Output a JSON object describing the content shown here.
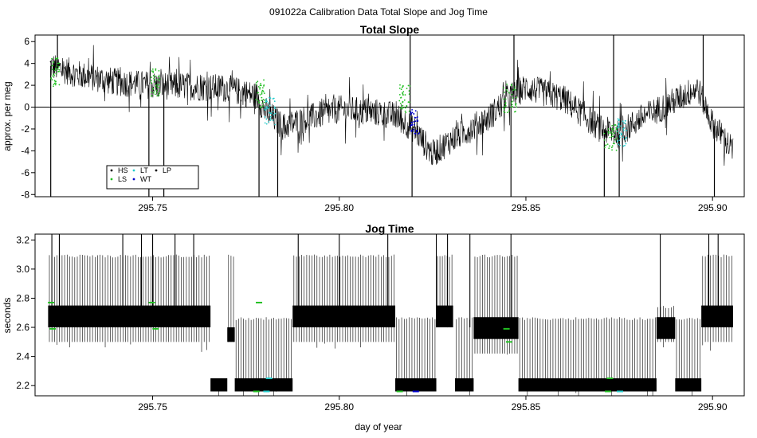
{
  "page_title": "091022a   Calibration Data Total Slope and Jog Time",
  "colors": {
    "trace": "#000000",
    "HS": "#000000",
    "LS": "#22c022",
    "LT": "#22cccc",
    "WT": "#0000cc",
    "LP": "#000000",
    "zero_line": "#000000"
  },
  "chart_data": [
    {
      "type": "line",
      "title": "Total Slope",
      "xlabel": "",
      "ylabel": "approx. per meg",
      "xlim": [
        295.7185,
        295.9085
      ],
      "ylim": [
        -8.2,
        6.6
      ],
      "x_ticks": [
        "295.75",
        "295.80",
        "295.85",
        "295.90"
      ],
      "x_tick_values": [
        295.75,
        295.8,
        295.85,
        295.9
      ],
      "y_ticks": [
        "6",
        "4",
        "2",
        "0",
        "-2",
        "-4",
        "-6",
        "-8"
      ],
      "y_tick_values": [
        6,
        4,
        2,
        0,
        -2,
        -4,
        -6,
        -8
      ],
      "reference_line_y": 0,
      "x_range": [
        295.7225,
        295.9055
      ],
      "trend": [
        {
          "x": 295.7225,
          "y": 3.8
        },
        {
          "x": 295.73,
          "y": 3.0
        },
        {
          "x": 295.74,
          "y": 2.3
        },
        {
          "x": 295.75,
          "y": 2.0
        },
        {
          "x": 295.76,
          "y": 1.9
        },
        {
          "x": 295.77,
          "y": 1.7
        },
        {
          "x": 295.778,
          "y": 1.0
        },
        {
          "x": 295.78,
          "y": -0.3
        },
        {
          "x": 295.785,
          "y": -1.8
        },
        {
          "x": 295.79,
          "y": -1.2
        },
        {
          "x": 295.8,
          "y": -0.2
        },
        {
          "x": 295.81,
          "y": -0.5
        },
        {
          "x": 295.815,
          "y": -0.8
        },
        {
          "x": 295.82,
          "y": -2.0
        },
        {
          "x": 295.825,
          "y": -4.3
        },
        {
          "x": 295.83,
          "y": -3.0
        },
        {
          "x": 295.84,
          "y": -1.0
        },
        {
          "x": 295.845,
          "y": 0.8
        },
        {
          "x": 295.85,
          "y": 1.8
        },
        {
          "x": 295.86,
          "y": 0.8
        },
        {
          "x": 295.87,
          "y": -2.0
        },
        {
          "x": 295.875,
          "y": -2.5
        },
        {
          "x": 295.88,
          "y": -1.2
        },
        {
          "x": 295.89,
          "y": 0.6
        },
        {
          "x": 295.896,
          "y": 1.8
        },
        {
          "x": 295.9,
          "y": -1.5
        },
        {
          "x": 295.9055,
          "y": -4.0
        }
      ],
      "noise_amplitude": 1.3,
      "spikes": [
        {
          "x": 295.7227,
          "y": -8.2
        },
        {
          "x": 295.7245,
          "y": 6.6
        },
        {
          "x": 295.749,
          "y": -8.2
        },
        {
          "x": 295.753,
          "y": -8.2
        },
        {
          "x": 295.7785,
          "y": -8.2
        },
        {
          "x": 295.7835,
          "y": -8.2
        },
        {
          "x": 295.819,
          "y": 6.6
        },
        {
          "x": 295.8195,
          "y": -8.2
        },
        {
          "x": 295.846,
          "y": -8.2
        },
        {
          "x": 295.8468,
          "y": 6.6
        },
        {
          "x": 295.871,
          "y": -8.2
        },
        {
          "x": 295.8735,
          "y": 6.6
        },
        {
          "x": 295.875,
          "y": -8.2
        },
        {
          "x": 295.8975,
          "y": 6.6
        },
        {
          "x": 295.9005,
          "y": -8.2
        }
      ],
      "calibration_segments": [
        {
          "series": "LS",
          "x_start": 295.7228,
          "x_end": 295.725,
          "y_center": 3.2
        },
        {
          "series": "LS",
          "x_start": 295.7495,
          "x_end": 295.752,
          "y_center": 2.2
        },
        {
          "series": "LS",
          "x_start": 295.7775,
          "x_end": 295.78,
          "y_center": 1.2
        },
        {
          "series": "LT",
          "x_start": 295.78,
          "x_end": 295.783,
          "y_center": -0.4
        },
        {
          "series": "LS",
          "x_start": 295.816,
          "x_end": 295.819,
          "y_center": 0.8
        },
        {
          "series": "WT",
          "x_start": 295.819,
          "x_end": 295.8215,
          "y_center": -1.4
        },
        {
          "series": "LS",
          "x_start": 295.844,
          "x_end": 295.8475,
          "y_center": 0.8
        },
        {
          "series": "LS",
          "x_start": 295.871,
          "x_end": 295.8745,
          "y_center": -2.8
        },
        {
          "series": "LT",
          "x_start": 295.8745,
          "x_end": 295.877,
          "y_center": -2.3
        }
      ],
      "legend": {
        "placement": "bottom-left",
        "entries": [
          {
            "label": "HS",
            "color": "#000000"
          },
          {
            "label": "LS",
            "color": "#22c022"
          },
          {
            "label": "LT",
            "color": "#22cccc"
          },
          {
            "label": "WT",
            "color": "#0000cc"
          },
          {
            "label": "LP",
            "color": "#000000"
          }
        ]
      }
    },
    {
      "type": "line",
      "title": "Jog Time",
      "xlabel": "day of year",
      "ylabel": "seconds",
      "xlim": [
        295.7185,
        295.9085
      ],
      "ylim": [
        2.13,
        3.24
      ],
      "x_ticks": [
        "295.75",
        "295.80",
        "295.85",
        "295.90"
      ],
      "x_tick_values": [
        295.75,
        295.8,
        295.85,
        295.9
      ],
      "y_ticks": [
        "2.2",
        "2.4",
        "2.6",
        "2.8",
        "3.0",
        "3.2"
      ],
      "y_tick_values": [
        2.2,
        2.4,
        2.6,
        2.8,
        3.0,
        3.2
      ],
      "upper_spikes": [
        {
          "x": 295.723
        },
        {
          "x": 295.725
        },
        {
          "x": 295.742
        },
        {
          "x": 295.747
        },
        {
          "x": 295.75
        },
        {
          "x": 295.756
        },
        {
          "x": 295.761
        },
        {
          "x": 295.789
        },
        {
          "x": 295.8
        },
        {
          "x": 295.813
        },
        {
          "x": 295.826
        },
        {
          "x": 295.829
        },
        {
          "x": 295.835
        },
        {
          "x": 295.846
        },
        {
          "x": 295.886
        },
        {
          "x": 295.899
        },
        {
          "x": 295.9015
        }
      ],
      "regimes": [
        {
          "x_start": 295.722,
          "x_end": 295.7655,
          "base": 2.6,
          "top": 3.1,
          "low": 2.5,
          "band_lo": 2.6,
          "band_hi": 2.75
        },
        {
          "x_start": 295.7655,
          "x_end": 295.77,
          "base": 2.16,
          "top": 2.25,
          "low": 2.16,
          "band_lo": 2.16,
          "band_hi": 2.25
        },
        {
          "x_start": 295.77,
          "x_end": 295.772,
          "base": 2.5,
          "top": 3.1,
          "low": 2.5,
          "band_lo": 2.5,
          "band_hi": 2.6
        },
        {
          "x_start": 295.772,
          "x_end": 295.7875,
          "base": 2.16,
          "top": 2.67,
          "low": 2.16,
          "band_lo": 2.16,
          "band_hi": 2.25
        },
        {
          "x_start": 295.7875,
          "x_end": 295.815,
          "base": 2.6,
          "top": 3.1,
          "low": 2.5,
          "band_lo": 2.6,
          "band_hi": 2.75
        },
        {
          "x_start": 295.815,
          "x_end": 295.826,
          "base": 2.16,
          "top": 2.67,
          "low": 2.16,
          "band_lo": 2.16,
          "band_hi": 2.25
        },
        {
          "x_start": 295.826,
          "x_end": 295.8305,
          "base": 2.6,
          "top": 3.1,
          "low": 2.6,
          "band_lo": 2.6,
          "band_hi": 2.75
        },
        {
          "x_start": 295.831,
          "x_end": 295.836,
          "base": 2.16,
          "top": 2.67,
          "low": 2.16,
          "band_lo": 2.16,
          "band_hi": 2.25
        },
        {
          "x_start": 295.836,
          "x_end": 295.848,
          "base": 2.52,
          "top": 3.1,
          "low": 2.42,
          "band_lo": 2.52,
          "band_hi": 2.67
        },
        {
          "x_start": 295.848,
          "x_end": 295.885,
          "base": 2.16,
          "top": 2.67,
          "low": 2.16,
          "band_lo": 2.16,
          "band_hi": 2.25
        },
        {
          "x_start": 295.885,
          "x_end": 295.89,
          "base": 2.52,
          "top": 2.75,
          "low": 2.5,
          "band_lo": 2.52,
          "band_hi": 2.67
        },
        {
          "x_start": 295.89,
          "x_end": 295.897,
          "base": 2.16,
          "top": 2.67,
          "low": 2.16,
          "band_lo": 2.16,
          "band_hi": 2.25
        },
        {
          "x_start": 295.897,
          "x_end": 295.9055,
          "base": 2.6,
          "top": 3.1,
          "low": 2.5,
          "band_lo": 2.6,
          "band_hi": 2.75
        }
      ],
      "calibration_marks": [
        {
          "series": "LS",
          "x": 295.7228,
          "y": 2.77
        },
        {
          "series": "LS",
          "x": 295.7232,
          "y": 2.59
        },
        {
          "series": "LS",
          "x": 295.7498,
          "y": 2.77
        },
        {
          "series": "LS",
          "x": 295.7508,
          "y": 2.59
        },
        {
          "series": "LS",
          "x": 295.7778,
          "y": 2.16
        },
        {
          "series": "LS",
          "x": 295.7785,
          "y": 2.77
        },
        {
          "series": "LT",
          "x": 295.7805,
          "y": 2.16
        },
        {
          "series": "LT",
          "x": 295.7812,
          "y": 2.25
        },
        {
          "series": "LS",
          "x": 295.8162,
          "y": 2.16
        },
        {
          "series": "WT",
          "x": 295.8205,
          "y": 2.16
        },
        {
          "series": "LS",
          "x": 295.8448,
          "y": 2.59
        },
        {
          "series": "LS",
          "x": 295.8455,
          "y": 2.5
        },
        {
          "series": "LS",
          "x": 295.872,
          "y": 2.16
        },
        {
          "series": "LS",
          "x": 295.8725,
          "y": 2.25
        },
        {
          "series": "LT",
          "x": 295.8752,
          "y": 2.16
        }
      ]
    }
  ]
}
